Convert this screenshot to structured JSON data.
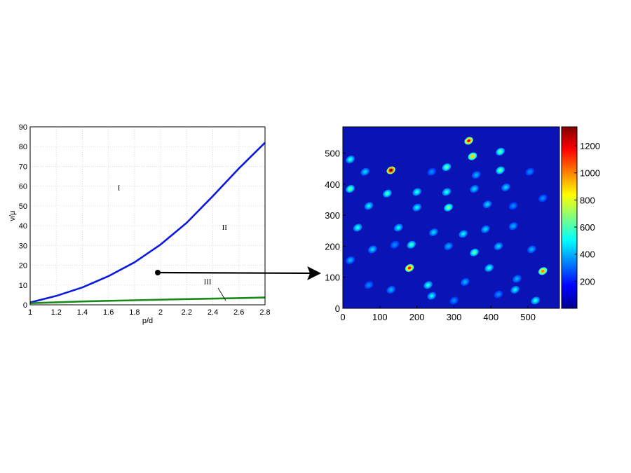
{
  "chart_data": [
    {
      "type": "line",
      "xlabel": "p/d",
      "ylabel": "ν/μ",
      "xlim": [
        1,
        2.8
      ],
      "ylim": [
        0,
        90
      ],
      "xticks": [
        "1",
        "1.2",
        "1.4",
        "1.6",
        "1.8",
        "2",
        "2.2",
        "2.4",
        "2.6",
        "2.8"
      ],
      "yticks": [
        "0",
        "10",
        "20",
        "30",
        "40",
        "50",
        "60",
        "70",
        "80",
        "90"
      ],
      "grid": true,
      "series": [
        {
          "color": "#0b18e0",
          "x": [
            1.0,
            1.2,
            1.4,
            1.6,
            1.8,
            2.0,
            2.2,
            2.4,
            2.6,
            2.8
          ],
          "y": [
            1.2,
            4.5,
            8.8,
            14.5,
            21.5,
            30.5,
            41.5,
            55.0,
            69.0,
            82.0
          ]
        },
        {
          "color": "#1a8a1a",
          "x": [
            1.0,
            1.4,
            1.8,
            2.2,
            2.6,
            2.8
          ],
          "y": [
            0.8,
            1.7,
            2.3,
            2.9,
            3.4,
            3.7
          ]
        }
      ],
      "annotations": [
        {
          "text": "I",
          "x": 1.68,
          "y": 58
        },
        {
          "text": "II",
          "x": 2.49,
          "y": 38
        },
        {
          "text": "III",
          "x": 2.36,
          "y": 10.5
        }
      ],
      "marker": {
        "x": 1.97,
        "y": 16.3
      }
    },
    {
      "type": "heatmap",
      "xlim": [
        0,
        585
      ],
      "ylim": [
        0,
        585
      ],
      "xticks": [
        "0",
        "100",
        "200",
        "300",
        "400",
        "500"
      ],
      "yticks": [
        "0",
        "100",
        "200",
        "300",
        "400",
        "500"
      ],
      "colorbar": {
        "min": 0,
        "max": 1340,
        "ticks": [
          "200",
          "400",
          "600",
          "800",
          "1000",
          "1200"
        ]
      },
      "peaks": [
        [
          340,
          540,
          1100
        ],
        [
          130,
          445,
          1300
        ],
        [
          350,
          490,
          800
        ],
        [
          425,
          505,
          500
        ],
        [
          280,
          455,
          500
        ],
        [
          425,
          445,
          500
        ],
        [
          20,
          480,
          400
        ],
        [
          60,
          440,
          300
        ],
        [
          20,
          385,
          500
        ],
        [
          120,
          370,
          450
        ],
        [
          200,
          375,
          400
        ],
        [
          280,
          375,
          400
        ],
        [
          355,
          385,
          300
        ],
        [
          440,
          390,
          300
        ],
        [
          360,
          430,
          250
        ],
        [
          240,
          440,
          200
        ],
        [
          505,
          440,
          200
        ],
        [
          70,
          330,
          350
        ],
        [
          200,
          325,
          350
        ],
        [
          285,
          325,
          550
        ],
        [
          390,
          335,
          300
        ],
        [
          540,
          355,
          200
        ],
        [
          460,
          330,
          200
        ],
        [
          40,
          260,
          400
        ],
        [
          150,
          260,
          350
        ],
        [
          245,
          245,
          300
        ],
        [
          325,
          240,
          350
        ],
        [
          385,
          255,
          300
        ],
        [
          460,
          265,
          250
        ],
        [
          185,
          205,
          450
        ],
        [
          285,
          200,
          250
        ],
        [
          355,
          180,
          500
        ],
        [
          420,
          200,
          300
        ],
        [
          510,
          190,
          250
        ],
        [
          80,
          190,
          300
        ],
        [
          140,
          205,
          200
        ],
        [
          180,
          130,
          1050
        ],
        [
          395,
          130,
          400
        ],
        [
          540,
          120,
          900
        ],
        [
          230,
          75,
          400
        ],
        [
          330,
          85,
          250
        ],
        [
          470,
          95,
          250
        ],
        [
          240,
          40,
          350
        ],
        [
          520,
          25,
          400
        ],
        [
          465,
          60,
          350
        ],
        [
          20,
          155,
          250
        ],
        [
          130,
          60,
          250
        ],
        [
          300,
          25,
          200
        ],
        [
          70,
          75,
          200
        ],
        [
          420,
          45,
          200
        ]
      ]
    }
  ]
}
